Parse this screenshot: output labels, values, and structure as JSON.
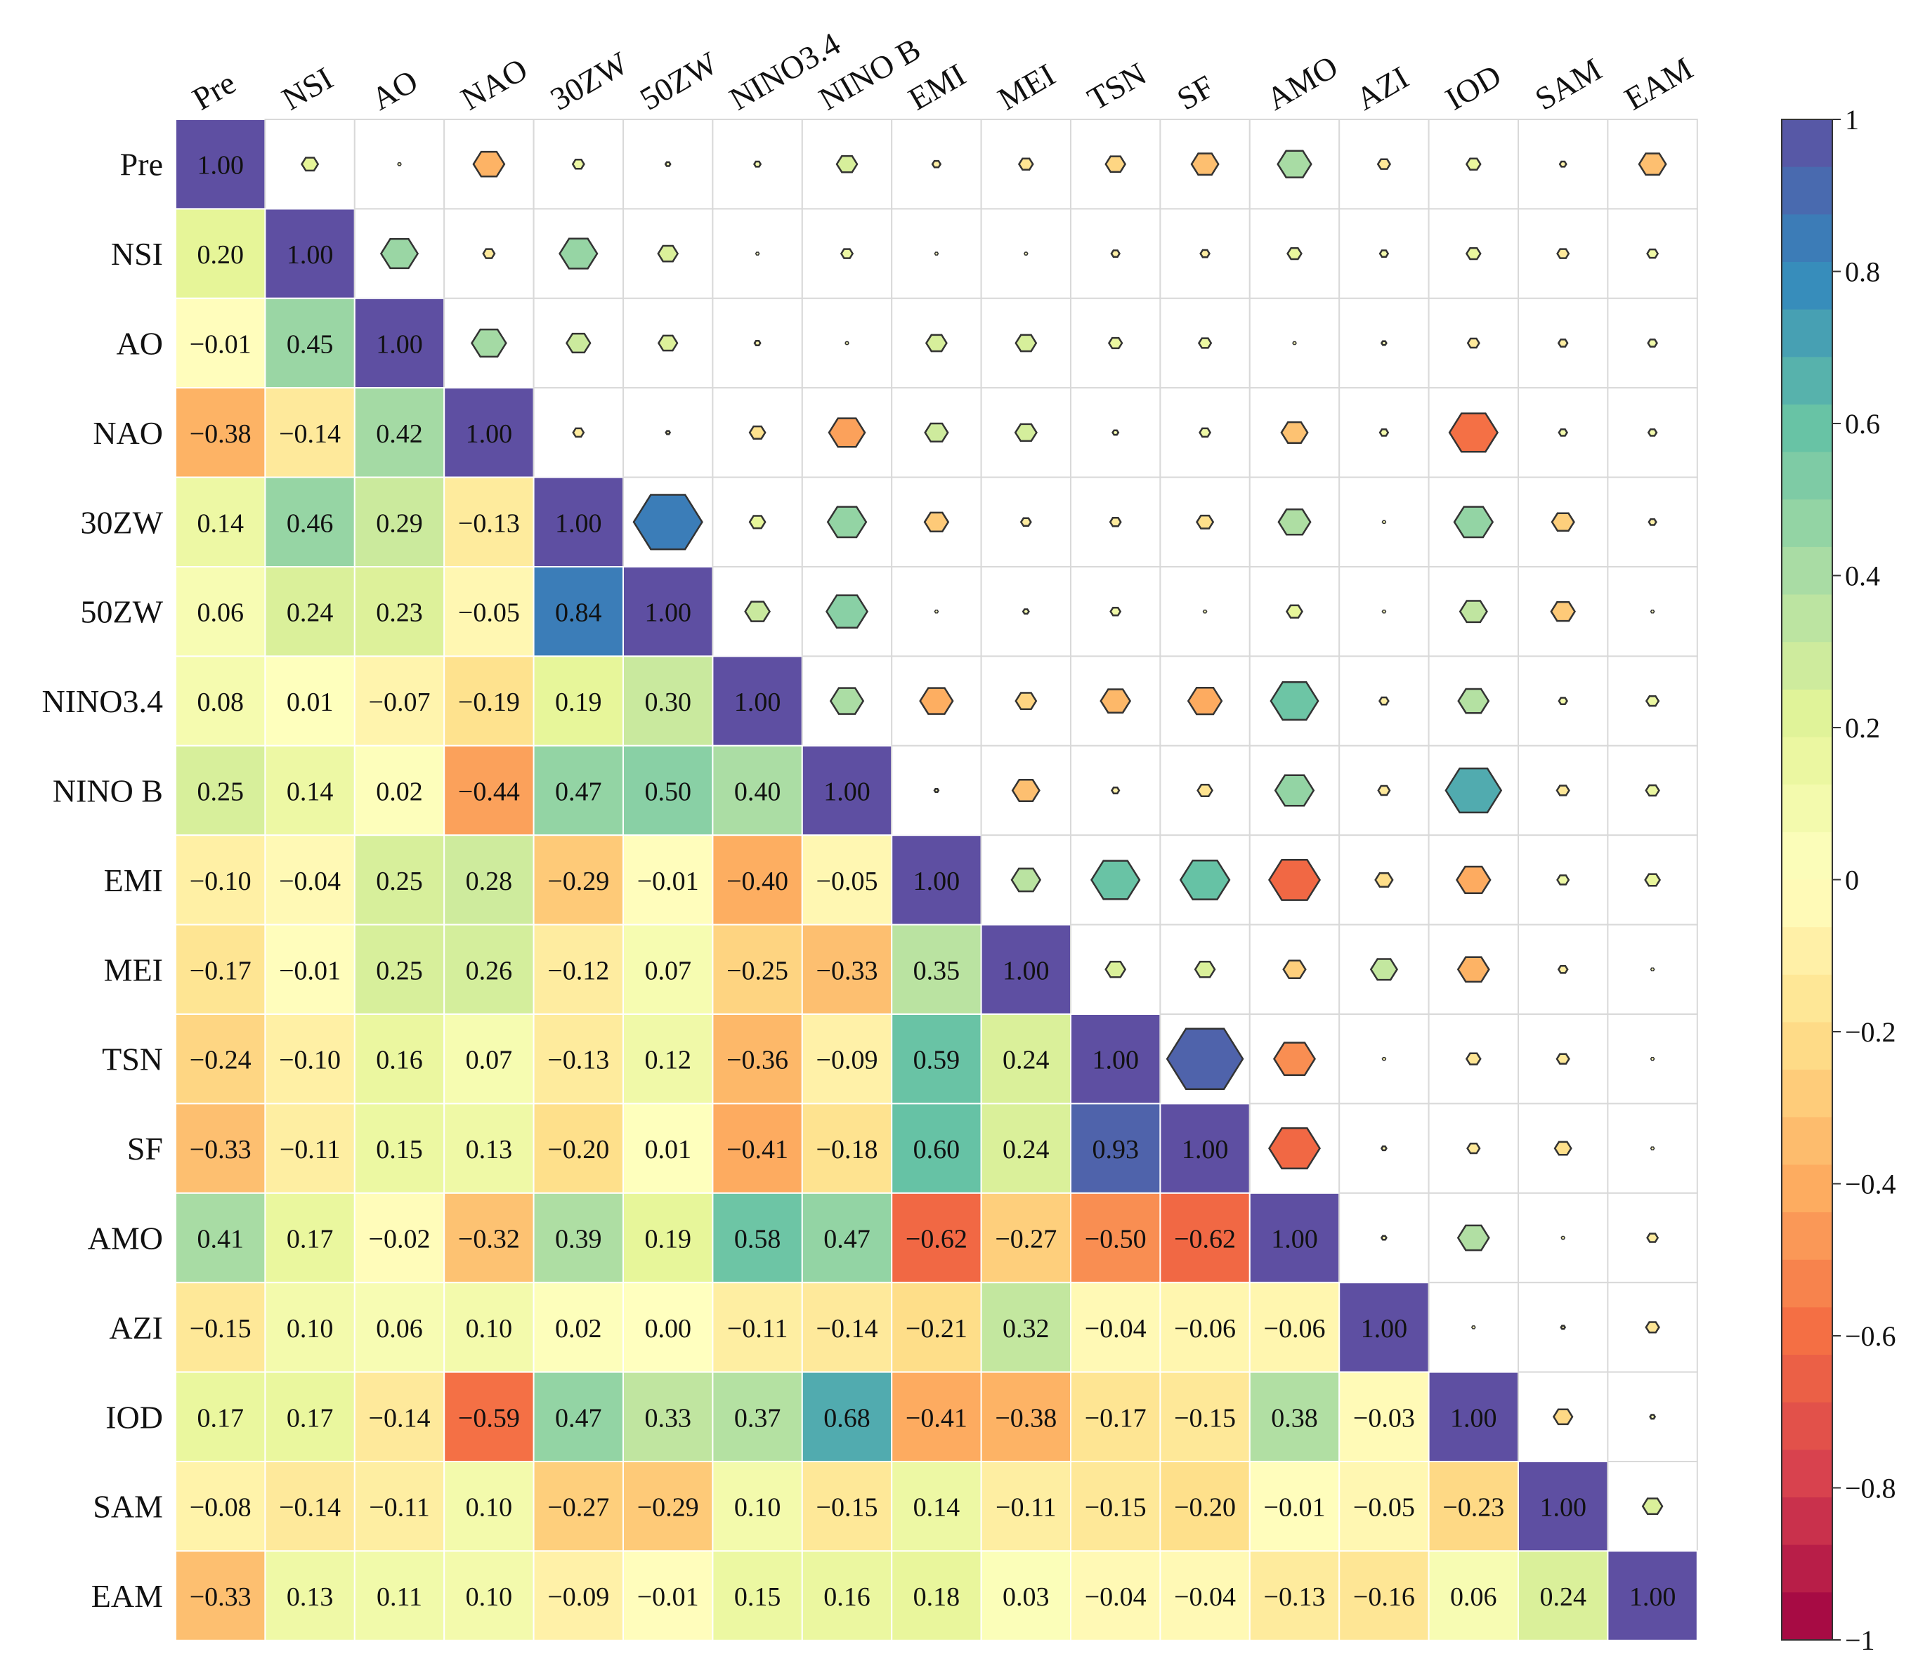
{
  "chart_data": {
    "type": "heatmap",
    "title": "",
    "variables": [
      "Pre",
      "NSI",
      "AO",
      "NAO",
      "30ZW",
      "50ZW",
      "NINO3.4",
      "NINO B",
      "EMI",
      "MEI",
      "TSN",
      "SF",
      "AMO",
      "AZI",
      "IOD",
      "SAM",
      "EAM"
    ],
    "lower_triangle_display": "annotated colored cells",
    "upper_triangle_display": "hexagon glyphs sized and colored by |r|",
    "matrix": [
      [
        1.0,
        0.2,
        -0.01,
        -0.38,
        0.14,
        0.06,
        0.08,
        0.25,
        -0.1,
        -0.17,
        -0.24,
        -0.33,
        0.41,
        -0.15,
        0.17,
        -0.08,
        -0.33
      ],
      [
        0.2,
        1.0,
        0.45,
        -0.14,
        0.46,
        0.24,
        0.01,
        0.14,
        -0.04,
        -0.01,
        -0.1,
        -0.11,
        0.17,
        0.1,
        0.17,
        -0.14,
        0.13
      ],
      [
        -0.01,
        0.45,
        1.0,
        0.42,
        0.29,
        0.23,
        -0.07,
        0.02,
        0.25,
        0.25,
        0.16,
        0.15,
        -0.02,
        0.06,
        -0.14,
        -0.11,
        0.11
      ],
      [
        -0.38,
        -0.14,
        0.42,
        1.0,
        -0.13,
        -0.05,
        -0.19,
        -0.44,
        0.28,
        0.26,
        0.07,
        0.13,
        -0.32,
        0.1,
        -0.59,
        0.1,
        0.1
      ],
      [
        0.14,
        0.46,
        0.29,
        -0.13,
        1.0,
        0.84,
        0.19,
        0.47,
        -0.29,
        -0.12,
        -0.13,
        -0.2,
        0.39,
        0.02,
        0.47,
        -0.27,
        -0.09
      ],
      [
        0.06,
        0.24,
        0.23,
        -0.05,
        0.84,
        1.0,
        0.3,
        0.5,
        -0.01,
        0.07,
        0.12,
        0.01,
        0.19,
        0.0,
        0.33,
        -0.29,
        -0.01
      ],
      [
        0.08,
        0.01,
        -0.07,
        -0.19,
        0.19,
        0.3,
        1.0,
        0.4,
        -0.4,
        -0.25,
        -0.36,
        -0.41,
        0.58,
        -0.11,
        0.37,
        0.1,
        0.15
      ],
      [
        0.25,
        0.14,
        0.02,
        -0.44,
        0.47,
        0.5,
        0.4,
        1.0,
        -0.05,
        -0.33,
        -0.09,
        -0.18,
        0.47,
        -0.14,
        0.68,
        -0.15,
        0.16
      ],
      [
        -0.1,
        -0.04,
        0.25,
        0.28,
        -0.29,
        -0.01,
        -0.4,
        -0.05,
        1.0,
        0.35,
        0.59,
        0.6,
        -0.62,
        -0.21,
        -0.41,
        0.14,
        0.18
      ],
      [
        -0.17,
        -0.01,
        0.25,
        0.26,
        -0.12,
        0.07,
        -0.25,
        -0.33,
        0.35,
        1.0,
        0.24,
        0.24,
        -0.27,
        0.32,
        -0.38,
        -0.11,
        0.03
      ],
      [
        -0.24,
        -0.1,
        0.16,
        0.07,
        -0.13,
        0.12,
        -0.36,
        -0.09,
        0.59,
        0.24,
        1.0,
        0.93,
        -0.5,
        -0.04,
        -0.17,
        -0.15,
        -0.04
      ],
      [
        -0.33,
        -0.11,
        0.15,
        0.13,
        -0.2,
        0.01,
        -0.41,
        -0.18,
        0.6,
        0.24,
        0.93,
        1.0,
        -0.62,
        -0.06,
        -0.15,
        -0.2,
        -0.04
      ],
      [
        0.41,
        0.17,
        -0.02,
        -0.32,
        0.39,
        0.19,
        0.58,
        0.47,
        -0.62,
        -0.27,
        -0.5,
        -0.62,
        1.0,
        -0.06,
        0.38,
        -0.01,
        -0.13
      ],
      [
        -0.15,
        0.1,
        0.06,
        0.1,
        0.02,
        0.0,
        -0.11,
        -0.14,
        -0.21,
        0.32,
        -0.04,
        -0.06,
        -0.06,
        1.0,
        -0.03,
        -0.05,
        -0.16
      ],
      [
        0.17,
        0.17,
        -0.14,
        -0.59,
        0.47,
        0.33,
        0.37,
        0.68,
        -0.41,
        -0.38,
        -0.17,
        -0.15,
        0.38,
        -0.03,
        1.0,
        -0.23,
        0.06
      ],
      [
        -0.08,
        -0.14,
        -0.11,
        0.1,
        -0.27,
        -0.29,
        0.1,
        -0.15,
        0.14,
        -0.11,
        -0.15,
        -0.2,
        -0.01,
        -0.05,
        -0.23,
        1.0,
        0.24
      ],
      [
        -0.33,
        0.13,
        0.11,
        0.1,
        -0.09,
        -0.01,
        0.15,
        0.16,
        0.18,
        0.03,
        -0.04,
        -0.04,
        -0.13,
        -0.16,
        0.06,
        0.24,
        1.0
      ]
    ],
    "colorbar": {
      "range": [
        -1,
        1
      ],
      "ticks": [
        {
          "value": 1,
          "label": "1"
        },
        {
          "value": 0.8,
          "label": "0.8"
        },
        {
          "value": 0.6,
          "label": "0.6"
        },
        {
          "value": 0.4,
          "label": "0.4"
        },
        {
          "value": 0.2,
          "label": "0.2"
        },
        {
          "value": 0,
          "label": "0"
        },
        {
          "value": -0.2,
          "label": "−0.2"
        },
        {
          "value": -0.4,
          "label": "−0.4"
        },
        {
          "value": -0.6,
          "label": "−0.6"
        },
        {
          "value": -0.8,
          "label": "−0.8"
        },
        {
          "value": -1,
          "label": "−1"
        }
      ],
      "colormap": "Spectral (reversed, purple positive / red negative)"
    },
    "colors": {
      "stops": [
        "#9e0142",
        "#d53e4f",
        "#f46d43",
        "#fdae61",
        "#fee08b",
        "#ffffbf",
        "#e6f598",
        "#abdda4",
        "#66c2a5",
        "#3288bd",
        "#5e4fa2"
      ],
      "grid": "#d9d9d9",
      "hex_stroke": "#333333",
      "text": "#111111"
    }
  }
}
